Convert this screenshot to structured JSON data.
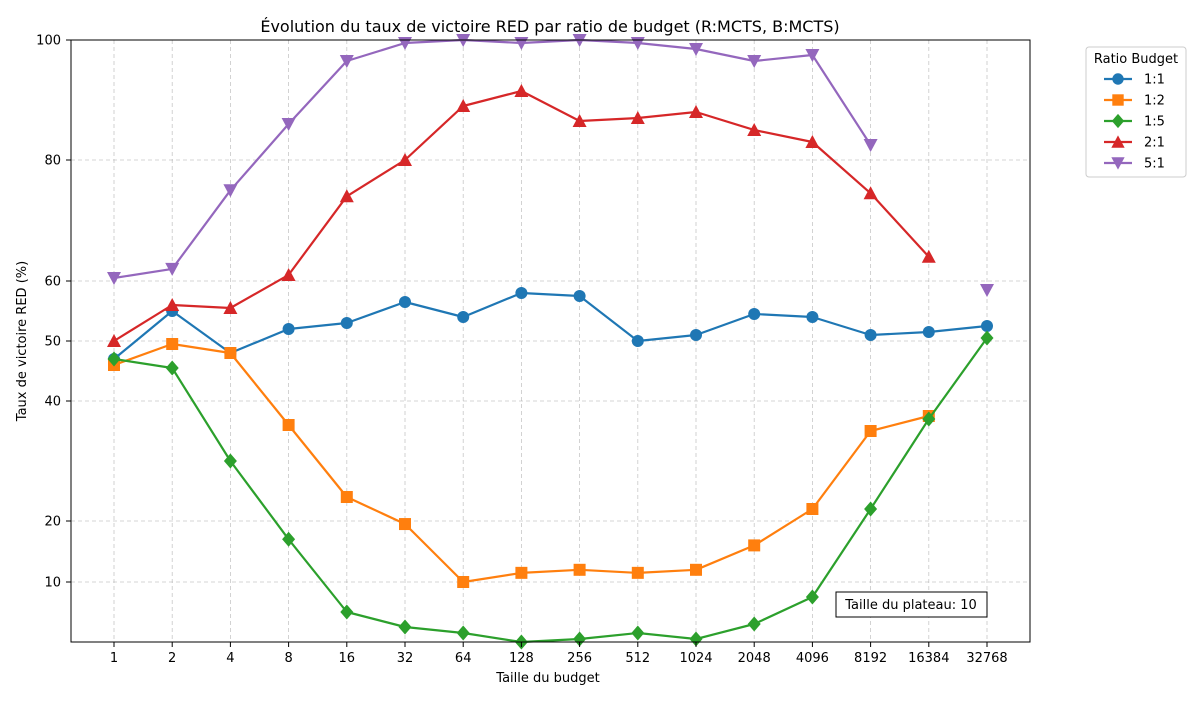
{
  "chart_data": {
    "type": "line",
    "title": "Évolution du taux de victoire RED par ratio de budget (R:MCTS, B:MCTS)",
    "xlabel": "Taille du budget",
    "ylabel": "Taux de victoire RED (%)",
    "categories": [
      "1",
      "2",
      "4",
      "8",
      "16",
      "32",
      "64",
      "128",
      "256",
      "512",
      "1024",
      "2048",
      "4096",
      "8192",
      "16384",
      "32768"
    ],
    "y_ticks": [
      10,
      20,
      40,
      50,
      60,
      80,
      100
    ],
    "ylim": [
      0,
      100
    ],
    "grid": true,
    "legend": {
      "title": "Ratio Budget",
      "placement": "outside-top-right"
    },
    "annotation": "Taille du plateau: 10",
    "series": [
      {
        "name": "1:1",
        "color": "#1f77b4",
        "marker": "circle",
        "values": [
          47,
          55,
          48,
          52,
          53,
          56.5,
          54,
          58,
          57.5,
          50,
          51,
          54.5,
          54,
          51,
          51.5,
          52.5
        ]
      },
      {
        "name": "1:2",
        "color": "#ff7f0e",
        "marker": "square",
        "values": [
          46,
          49.5,
          48,
          36,
          24,
          19.5,
          10,
          11.5,
          12,
          11.5,
          12,
          16,
          22,
          35,
          37.5,
          null
        ]
      },
      {
        "name": "1:5",
        "color": "#2ca02c",
        "marker": "diamond",
        "values": [
          47,
          45.5,
          30,
          17,
          5,
          2.5,
          1.5,
          0,
          0.5,
          1.5,
          0.5,
          3,
          7.5,
          22,
          37,
          50.5
        ]
      },
      {
        "name": "2:1",
        "color": "#d62728",
        "marker": "triangle-up",
        "values": [
          50,
          56,
          55.5,
          61,
          74,
          80,
          89,
          91.5,
          86.5,
          87,
          88,
          85,
          83,
          74.5,
          64,
          null
        ]
      },
      {
        "name": "5:1",
        "color": "#9467bd",
        "marker": "triangle-down",
        "values": [
          60.5,
          62,
          75,
          86,
          96.5,
          99.5,
          100,
          99.5,
          100,
          99.5,
          98.5,
          96.5,
          97.5,
          82.5,
          null,
          58.5
        ]
      }
    ]
  }
}
